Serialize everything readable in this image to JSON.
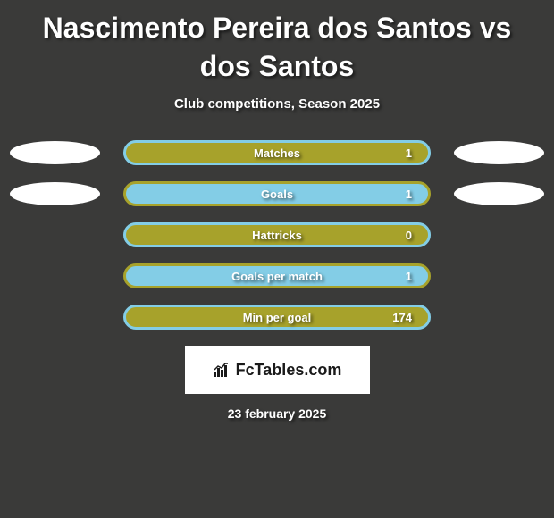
{
  "title": "Nascimento Pereira dos Santos vs dos Santos",
  "subtitle": "Club competitions, Season 2025",
  "background_color": "#3a3a39",
  "text_color": "#ffffff",
  "pill_width": 344,
  "pill_height": 28,
  "side_oval": {
    "width": 101,
    "height": 26,
    "color": "#ffffff"
  },
  "metrics": [
    {
      "label": "Matches",
      "value": "1",
      "pill_color": "#a7a22b",
      "pill_border": "#83cde6",
      "show_left_oval": true,
      "show_right_oval": true
    },
    {
      "label": "Goals",
      "value": "1",
      "pill_color": "#83cde6",
      "pill_border": "#a7a22b",
      "show_left_oval": true,
      "show_right_oval": true
    },
    {
      "label": "Hattricks",
      "value": "0",
      "pill_color": "#a7a22b",
      "pill_border": "#83cde6",
      "show_left_oval": false,
      "show_right_oval": false
    },
    {
      "label": "Goals per match",
      "value": "1",
      "pill_color": "#83cde6",
      "pill_border": "#a7a22b",
      "show_left_oval": false,
      "show_right_oval": false
    },
    {
      "label": "Min per goal",
      "value": "174",
      "pill_color": "#a7a22b",
      "pill_border": "#83cde6",
      "show_left_oval": false,
      "show_right_oval": false
    }
  ],
  "brand": {
    "text": "FcTables.com",
    "text_color": "#1a1a1a",
    "background": "#ffffff"
  },
  "date": "23 february 2025"
}
